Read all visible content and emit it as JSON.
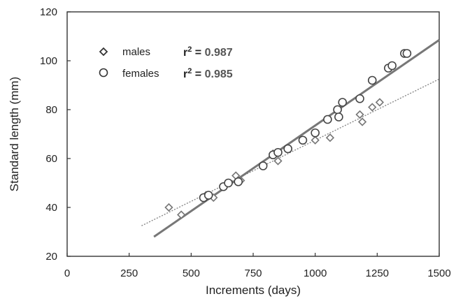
{
  "chart_data": {
    "type": "scatter",
    "xlabel": "Increments (days)",
    "ylabel": "Standard length (mm)",
    "xlim": [
      0,
      1500
    ],
    "ylim": [
      20,
      120
    ],
    "xticks": [
      "0",
      "250",
      "500",
      "750",
      "1000",
      "1250",
      "1500"
    ],
    "yticks": [
      "20",
      "40",
      "60",
      "80",
      "100",
      "120"
    ],
    "grid": false,
    "legend_position": "top-left",
    "series": [
      {
        "name": "males",
        "marker": "diamond",
        "r2_label": "r",
        "r2_value": "0.987",
        "color": "#666666",
        "points": [
          [
            410,
            40
          ],
          [
            460,
            37
          ],
          [
            560,
            45
          ],
          [
            590,
            44
          ],
          [
            680,
            53
          ],
          [
            700,
            51
          ],
          [
            830,
            62
          ],
          [
            850,
            59
          ],
          [
            1000,
            67.5
          ],
          [
            1060,
            68.5
          ],
          [
            1180,
            78
          ],
          [
            1190,
            75
          ],
          [
            1230,
            81
          ],
          [
            1260,
            83
          ]
        ],
        "fit_line": {
          "x": [
            300,
            1500
          ],
          "y": [
            32.5,
            92.5
          ]
        }
      },
      {
        "name": "females",
        "marker": "circle",
        "r2_label": "r",
        "r2_value": "0.985",
        "color": "#555555",
        "points": [
          [
            550,
            44
          ],
          [
            570,
            45
          ],
          [
            630,
            48.5
          ],
          [
            650,
            50
          ],
          [
            690,
            50.5
          ],
          [
            790,
            57
          ],
          [
            830,
            61.5
          ],
          [
            850,
            62.5
          ],
          [
            890,
            64
          ],
          [
            950,
            67.5
          ],
          [
            1000,
            70.5
          ],
          [
            1050,
            76
          ],
          [
            1090,
            80
          ],
          [
            1095,
            77
          ],
          [
            1110,
            83
          ],
          [
            1180,
            84.5
          ],
          [
            1230,
            92
          ],
          [
            1295,
            97
          ],
          [
            1310,
            98
          ],
          [
            1360,
            103
          ],
          [
            1370,
            103
          ]
        ],
        "fit_line": {
          "x": [
            350,
            1500
          ],
          "y": [
            28,
            108.5
          ]
        }
      }
    ]
  }
}
